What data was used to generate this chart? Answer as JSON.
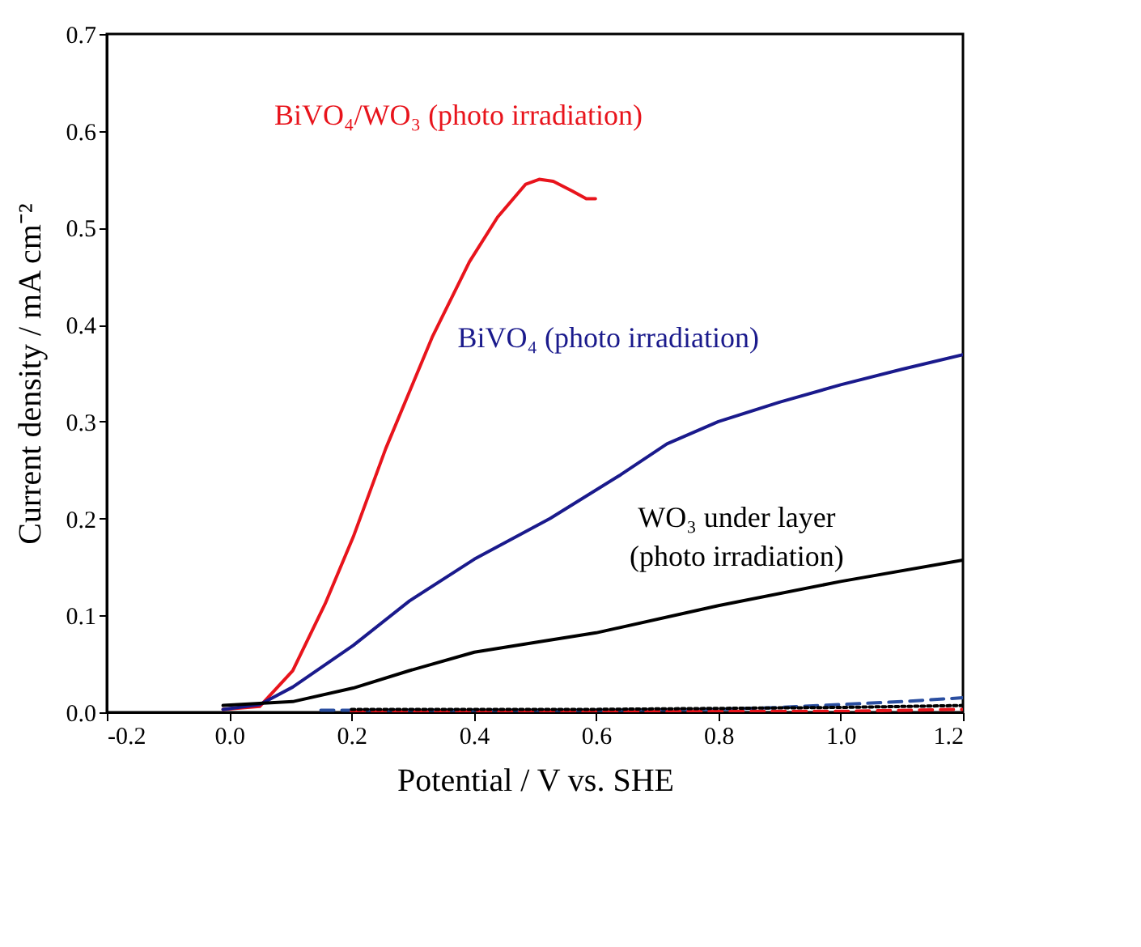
{
  "chart_data": {
    "type": "line",
    "xlabel": "Potential / V vs. SHE",
    "ylabel": "Current density / mA cm⁻²",
    "xlim": [
      -0.2,
      1.2
    ],
    "ylim": [
      0,
      0.7
    ],
    "xticks": [
      {
        "value": -0.2,
        "label": "-0.2"
      },
      {
        "value": 0,
        "label": "0.0"
      },
      0.2,
      0.4,
      0.6,
      0.8,
      {
        "value": 1,
        "label": "1.0"
      },
      1.2
    ],
    "yticks": [
      {
        "value": 0,
        "label": "0.0"
      },
      0.1,
      0.2,
      0.3,
      0.4,
      0.5,
      0.6,
      0.7
    ],
    "grid": false,
    "marker": "none",
    "series": [
      {
        "name": "BiVO₄/WO₃ (photo irradiation)",
        "color": "#e8141c",
        "line_style": "solid",
        "x": [
          -0.01,
          0.05,
          0.104,
          0.157,
          0.203,
          0.256,
          0.332,
          0.393,
          0.439,
          0.485,
          0.507,
          0.53,
          0.561,
          0.584,
          0.599
        ],
        "values": [
          0.003,
          0.006,
          0.043,
          0.112,
          0.181,
          0.272,
          0.387,
          0.465,
          0.511,
          0.545,
          0.55,
          0.548,
          0.538,
          0.53,
          0.53
        ]
      },
      {
        "name": "BiVO₄ (photo irradiation)",
        "color": "#1a1a8c",
        "line_style": "solid",
        "x": [
          -0.01,
          0.05,
          0.104,
          0.203,
          0.295,
          0.401,
          0.525,
          0.64,
          0.716,
          0.8,
          0.9,
          1.0,
          1.1,
          1.2
        ],
        "values": [
          0.003,
          0.008,
          0.026,
          0.069,
          0.115,
          0.158,
          0.2,
          0.245,
          0.277,
          0.3,
          0.32,
          0.338,
          0.354,
          0.369
        ]
      },
      {
        "name": "WO₃ under layer\n(photo irradiation)",
        "color": "#000000",
        "line_style": "solid",
        "x": [
          -0.01,
          0.104,
          0.203,
          0.295,
          0.401,
          0.5,
          0.6,
          0.8,
          1.0,
          1.2
        ],
        "values": [
          0.007,
          0.011,
          0.025,
          0.043,
          0.062,
          0.072,
          0.082,
          0.11,
          0.135,
          0.157
        ]
      },
      {
        "color": "#2a4ea0",
        "line_style": "dashed",
        "x": [
          0.15,
          0.4,
          0.6,
          0.8,
          0.9,
          1.0,
          1.1,
          1.2
        ],
        "values": [
          0.002,
          0.002,
          0.002,
          0.003,
          0.005,
          0.008,
          0.011,
          0.015
        ]
      },
      {
        "color": "#e8141c",
        "line_style": "dashed",
        "x": [
          0.2,
          0.4,
          0.6,
          0.8,
          1.0,
          1.2
        ],
        "values": [
          0.001,
          0.001,
          0.001,
          0.001,
          0.001,
          0.003
        ]
      },
      {
        "color": "#000000",
        "line_style": "dotted",
        "x": [
          0.2,
          0.4,
          0.6,
          0.8,
          1.0,
          1.2
        ],
        "values": [
          0.003,
          0.003,
          0.003,
          0.004,
          0.005,
          0.007
        ]
      }
    ]
  }
}
